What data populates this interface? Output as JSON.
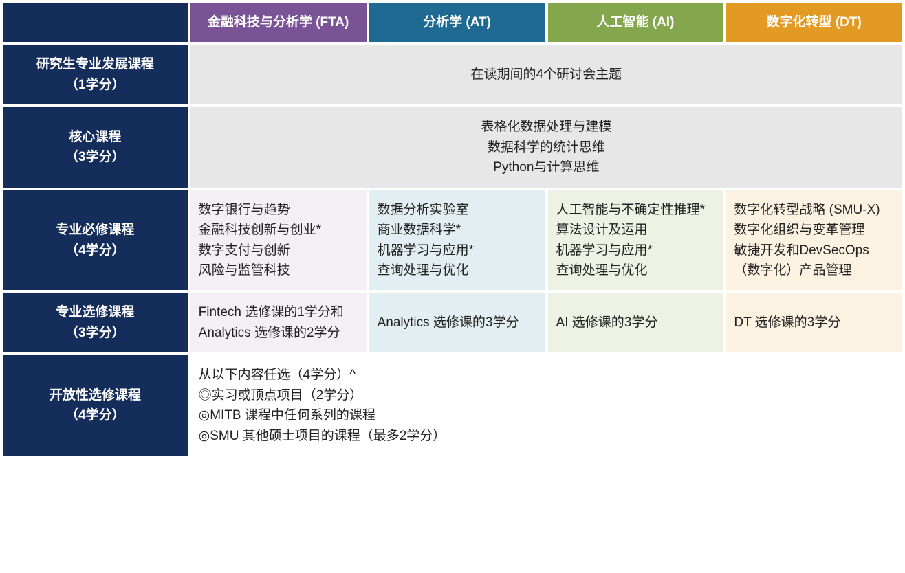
{
  "colors": {
    "navy": "#142d5a",
    "grey_merged": "#e7e7e7",
    "fta_header": "#7a5396",
    "at_header": "#1f6a92",
    "ai_header": "#84a74d",
    "dt_header": "#e39a23",
    "fta_cell": "#f4eef5",
    "at_cell": "#e2eef2",
    "ai_cell": "#edf2e4",
    "dt_cell": "#fbf2e1",
    "white": "#ffffff"
  },
  "headers": {
    "fta": "金融科技与分析学 (FTA)",
    "at": "分析学 (AT)",
    "ai": "人工智能 (AI)",
    "dt": "数字化转型 (DT)"
  },
  "rows": {
    "r1": {
      "title": "研究生专业发展课程",
      "credits": "（1学分）"
    },
    "r2": {
      "title": "核心课程",
      "credits": "（3学分）"
    },
    "r3": {
      "title": "专业必修课程",
      "credits": "（4学分）"
    },
    "r4": {
      "title": "专业选修课程",
      "credits": "（3学分）"
    },
    "r5": {
      "title": "开放性选修课程",
      "credits": "（4学分）"
    }
  },
  "merged": {
    "r1": "在读期间的4个研讨会主题",
    "r2_l1": "表格化数据处理与建模",
    "r2_l2": "数据科学的统计思维",
    "r2_l3": "Python与计算思维"
  },
  "required": {
    "fta": {
      "i1": "数字银行与趋势",
      "i2": "金融科技创新与创业*",
      "i3": "数字支付与创新",
      "i4": "风险与监管科技"
    },
    "at": {
      "i1": "数据分析实验室",
      "i2": "商业数据科学*",
      "i3": "机器学习与应用*",
      "i4": "查询处理与优化"
    },
    "ai": {
      "i1": "人工智能与不确定性推理*",
      "i2": "算法设计及运用",
      "i3": "机器学习与应用*",
      "i4": "查询处理与优化"
    },
    "dt": {
      "i1": "数字化转型战略 (SMU-X)",
      "i2": "数字化组织与变革管理",
      "i3": "敏捷开发和DevSecOps",
      "i4": "（数字化）产品管理"
    }
  },
  "elective": {
    "fta": "Fintech 选修课的1学分和 Analytics 选修课的2学分",
    "at": "Analytics 选修课的3学分",
    "ai": "AI 选修课的3学分",
    "dt": "DT 选修课的3学分"
  },
  "open": {
    "l1": "从以下内容任选（4学分）^",
    "l2": "◎实习或顶点项目（2学分）",
    "l3": "◎MITB 课程中任何系列的课程",
    "l4": "◎SMU 其他硕士项目的课程（最多2学分）"
  }
}
